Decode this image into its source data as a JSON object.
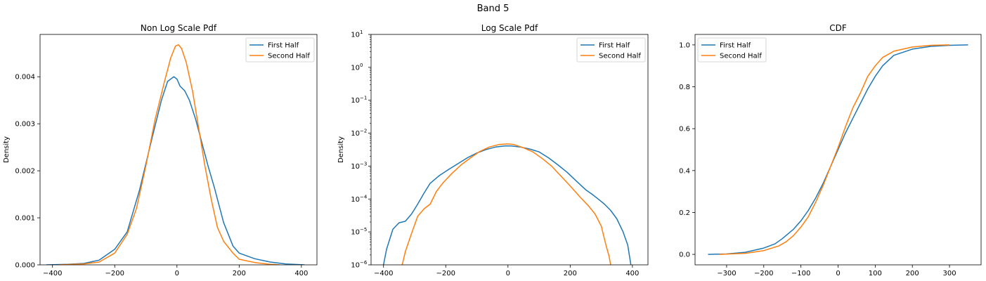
{
  "figure": {
    "suptitle": "Band 5"
  },
  "colors": {
    "first": "#1f77b4",
    "second": "#ff7f0e"
  },
  "chart_data": [
    {
      "type": "line",
      "title": "Non Log Scale Pdf",
      "xlabel": "",
      "ylabel": "Density",
      "xlim": [
        -440,
        450
      ],
      "ylim": [
        0,
        0.0049
      ],
      "xticks": [
        -400,
        -200,
        0,
        200,
        400
      ],
      "xtick_labels": [
        "−400",
        "−200",
        "0",
        "200",
        "400"
      ],
      "yticks": [
        0,
        0.001,
        0.002,
        0.003,
        0.004
      ],
      "ytick_labels": [
        "0.000",
        "0.001",
        "0.002",
        "0.003",
        "0.004"
      ],
      "legend": {
        "position": "top-right",
        "entries": [
          "First Half",
          "Second Half"
        ]
      },
      "series": [
        {
          "name": "First Half",
          "color": "#1f77b4",
          "x": [
            -420,
            -350,
            -300,
            -250,
            -200,
            -160,
            -120,
            -80,
            -50,
            -30,
            -10,
            0,
            10,
            25,
            40,
            60,
            80,
            100,
            120,
            150,
            180,
            200,
            250,
            300,
            350,
            410
          ],
          "y": [
            0,
            1e-05,
            3e-05,
            0.0001,
            0.00033,
            0.0007,
            0.0016,
            0.0027,
            0.0035,
            0.0039,
            0.004,
            0.00395,
            0.0038,
            0.0037,
            0.0035,
            0.0031,
            0.0026,
            0.0021,
            0.00165,
            0.0009,
            0.0004,
            0.00025,
            0.00013,
            6e-05,
            2e-05,
            0
          ]
        },
        {
          "name": "Second Half",
          "color": "#ff7f0e",
          "x": [
            -380,
            -300,
            -250,
            -200,
            -160,
            -130,
            -100,
            -70,
            -40,
            -20,
            -5,
            5,
            15,
            30,
            50,
            70,
            90,
            110,
            130,
            150,
            180,
            200,
            250,
            300,
            330
          ],
          "y": [
            0,
            2e-05,
            6e-05,
            0.00025,
            0.00065,
            0.0012,
            0.0021,
            0.0031,
            0.0039,
            0.0044,
            0.00465,
            0.00468,
            0.0046,
            0.0043,
            0.0037,
            0.0029,
            0.0021,
            0.0014,
            0.0008,
            0.0005,
            0.00025,
            0.00012,
            5e-05,
            1e-05,
            0
          ]
        }
      ]
    },
    {
      "type": "line",
      "title": "Log Scale Pdf",
      "xlabel": "",
      "ylabel": "Density",
      "yscale": "log",
      "xlim": [
        -440,
        450
      ],
      "ylim": [
        1e-06,
        10
      ],
      "xticks": [
        -400,
        -200,
        0,
        200,
        400
      ],
      "xtick_labels": [
        "−400",
        "−200",
        "0",
        "200",
        "400"
      ],
      "yticks": [
        1e-06,
        1e-05,
        0.0001,
        0.001,
        0.01,
        0.1,
        1,
        10
      ],
      "ytick_labels": [
        "10",
        "10",
        "10",
        "10",
        "10",
        "10",
        "10",
        "10"
      ],
      "ytick_exponents": [
        "−6",
        "−5",
        "−4",
        "−3",
        "−2",
        "−1",
        "0",
        "1"
      ],
      "legend": {
        "position": "top-right",
        "entries": [
          "First Half",
          "Second Half"
        ]
      },
      "series": [
        {
          "name": "First Half",
          "color": "#1f77b4",
          "x": [
            -400,
            -390,
            -370,
            -350,
            -330,
            -310,
            -290,
            -270,
            -250,
            -220,
            -190,
            -160,
            -130,
            -100,
            -70,
            -40,
            -10,
            10,
            40,
            70,
            100,
            130,
            160,
            190,
            220,
            250,
            270,
            290,
            310,
            330,
            350,
            370,
            385,
            395
          ],
          "y": [
            1e-06,
            3e-06,
            1.2e-05,
            1.9e-05,
            2.1e-05,
            3.5e-05,
            7e-05,
            0.00015,
            0.0003,
            0.00052,
            0.0008,
            0.0012,
            0.0018,
            0.0025,
            0.0032,
            0.0038,
            0.0041,
            0.0041,
            0.0038,
            0.0033,
            0.0027,
            0.0018,
            0.0011,
            0.00065,
            0.00035,
            0.00019,
            0.00014,
            0.0001,
            7e-05,
            4.5e-05,
            2.5e-05,
            1e-05,
            4e-06,
            1e-06
          ]
        },
        {
          "name": "Second Half",
          "color": "#ff7f0e",
          "x": [
            -340,
            -330,
            -310,
            -290,
            -270,
            -250,
            -230,
            -210,
            -180,
            -150,
            -120,
            -90,
            -60,
            -30,
            0,
            20,
            50,
            80,
            110,
            140,
            170,
            200,
            230,
            260,
            280,
            300,
            315,
            325,
            330
          ],
          "y": [
            1e-06,
            2.5e-06,
            9e-06,
            3e-05,
            5e-05,
            7e-05,
            0.00017,
            0.0003,
            0.0006,
            0.0011,
            0.0018,
            0.0028,
            0.0038,
            0.0045,
            0.0047,
            0.0045,
            0.0036,
            0.0027,
            0.0017,
            0.001,
            0.0005,
            0.00025,
            0.00012,
            6e-05,
            3.5e-05,
            1.5e-05,
            4e-06,
            1.8e-06,
            1e-06
          ]
        }
      ]
    },
    {
      "type": "line",
      "title": "CDF",
      "xlabel": "",
      "ylabel": "",
      "xlim": [
        -385,
        385
      ],
      "ylim": [
        -0.05,
        1.05
      ],
      "xticks": [
        -300,
        -200,
        -100,
        0,
        100,
        200,
        300
      ],
      "xtick_labels": [
        "−300",
        "−200",
        "−100",
        "0",
        "100",
        "200",
        "300"
      ],
      "yticks": [
        0,
        0.2,
        0.4,
        0.6,
        0.8,
        1.0
      ],
      "ytick_labels": [
        "0.0",
        "0.2",
        "0.4",
        "0.6",
        "0.8",
        "1.0"
      ],
      "legend": {
        "position": "top-left",
        "entries": [
          "First Half",
          "Second Half"
        ]
      },
      "series": [
        {
          "name": "First Half",
          "color": "#1f77b4",
          "x": [
            -350,
            -300,
            -250,
            -200,
            -170,
            -150,
            -120,
            -100,
            -80,
            -60,
            -40,
            -20,
            0,
            20,
            40,
            60,
            80,
            100,
            120,
            150,
            200,
            250,
            300,
            350
          ],
          "y": [
            0,
            0.002,
            0.01,
            0.03,
            0.05,
            0.075,
            0.12,
            0.16,
            0.21,
            0.27,
            0.34,
            0.42,
            0.5,
            0.58,
            0.65,
            0.72,
            0.79,
            0.85,
            0.9,
            0.95,
            0.98,
            0.993,
            0.998,
            1.0
          ]
        },
        {
          "name": "Second Half",
          "color": "#ff7f0e",
          "x": [
            -320,
            -250,
            -200,
            -160,
            -140,
            -120,
            -100,
            -80,
            -60,
            -40,
            -20,
            0,
            20,
            40,
            60,
            80,
            100,
            120,
            150,
            200,
            250,
            300
          ],
          "y": [
            0,
            0.005,
            0.018,
            0.04,
            0.06,
            0.09,
            0.13,
            0.18,
            0.25,
            0.33,
            0.42,
            0.51,
            0.61,
            0.7,
            0.77,
            0.85,
            0.9,
            0.94,
            0.97,
            0.99,
            0.998,
            1.0
          ]
        }
      ]
    }
  ]
}
